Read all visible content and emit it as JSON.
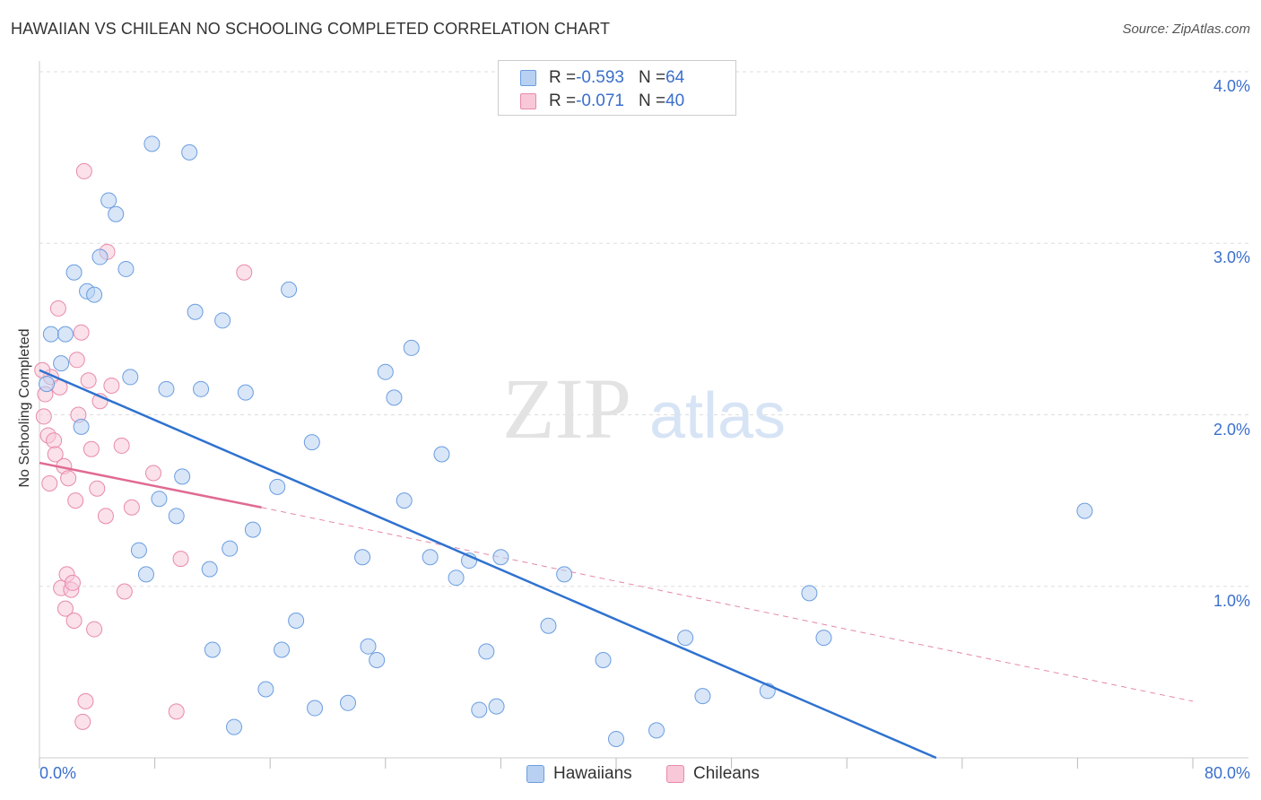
{
  "title": "HAWAIIAN VS CHILEAN NO SCHOOLING COMPLETED CORRELATION CHART",
  "source": "Source: ZipAtlas.com",
  "watermark": {
    "zip": "ZIP",
    "atlas": "atlas"
  },
  "legend_top": [
    {
      "r_label": "R = ",
      "r_value": "-0.593",
      "n_label": "N = ",
      "n_value": "64"
    },
    {
      "r_label": "R = ",
      "r_value": "-0.071",
      "n_label": "N = ",
      "n_value": "40"
    }
  ],
  "colors": {
    "hawaiians_fill": "#b8d1f2",
    "hawaiians_stroke": "#6b9de0",
    "hawaiians_line": "#2f72d0",
    "chileans_fill": "#f8c8d8",
    "chileans_stroke": "#e88aaa",
    "chileans_line": "#e06a92",
    "axis_label": "#3a6fcc",
    "grid": "#dddddd"
  },
  "chart_data": {
    "type": "scatter",
    "title": "HAWAIIAN VS CHILEAN NO SCHOOLING COMPLETED CORRELATION CHART",
    "xlabel": "",
    "ylabel": "No Schooling Completed",
    "xlim": [
      0,
      80
    ],
    "ylim": [
      0,
      4.2
    ],
    "x_tick_labels": [
      "0.0%",
      "80.0%"
    ],
    "y_ticks": [
      {
        "value": 1.0,
        "label": "1.0%"
      },
      {
        "value": 2.0,
        "label": "2.0%"
      },
      {
        "value": 3.0,
        "label": "3.0%"
      },
      {
        "value": 4.0,
        "label": "4.0%"
      }
    ],
    "grid": true,
    "legend_position": "bottom-center",
    "series": [
      {
        "name": "Hawaiians",
        "R": -0.593,
        "N": 64,
        "trend": {
          "x": [
            0.0,
            62.2
          ],
          "y": [
            2.26,
            0.0
          ]
        },
        "points": [
          [
            0.5,
            2.18
          ],
          [
            0.8,
            2.47
          ],
          [
            1.5,
            2.3
          ],
          [
            1.8,
            2.47
          ],
          [
            2.4,
            2.83
          ],
          [
            3.3,
            2.72
          ],
          [
            3.8,
            2.7
          ],
          [
            4.2,
            2.92
          ],
          [
            2.9,
            1.93
          ],
          [
            4.8,
            3.25
          ],
          [
            5.3,
            3.17
          ],
          [
            6.0,
            2.85
          ],
          [
            6.3,
            2.22
          ],
          [
            6.9,
            1.21
          ],
          [
            7.4,
            1.07
          ],
          [
            7.8,
            3.58
          ],
          [
            8.3,
            1.51
          ],
          [
            8.8,
            2.15
          ],
          [
            9.5,
            1.41
          ],
          [
            9.9,
            1.64
          ],
          [
            10.4,
            3.53
          ],
          [
            10.8,
            2.6
          ],
          [
            11.2,
            2.15
          ],
          [
            11.8,
            1.1
          ],
          [
            12.0,
            0.63
          ],
          [
            12.7,
            2.55
          ],
          [
            13.2,
            1.22
          ],
          [
            13.5,
            0.18
          ],
          [
            14.3,
            2.13
          ],
          [
            14.8,
            1.33
          ],
          [
            15.7,
            0.4
          ],
          [
            16.5,
            1.58
          ],
          [
            16.8,
            0.63
          ],
          [
            17.3,
            2.73
          ],
          [
            17.8,
            0.8
          ],
          [
            18.9,
            1.84
          ],
          [
            19.1,
            0.29
          ],
          [
            21.4,
            0.32
          ],
          [
            22.4,
            1.17
          ],
          [
            22.8,
            0.65
          ],
          [
            23.4,
            0.57
          ],
          [
            24.0,
            2.25
          ],
          [
            24.6,
            2.1
          ],
          [
            25.3,
            1.5
          ],
          [
            25.8,
            2.39
          ],
          [
            27.1,
            1.17
          ],
          [
            27.9,
            1.77
          ],
          [
            28.9,
            1.05
          ],
          [
            29.8,
            1.15
          ],
          [
            30.5,
            0.28
          ],
          [
            31.0,
            0.62
          ],
          [
            31.7,
            0.3
          ],
          [
            32.0,
            1.17
          ],
          [
            35.3,
            0.77
          ],
          [
            36.4,
            1.07
          ],
          [
            39.1,
            0.57
          ],
          [
            40.0,
            0.11
          ],
          [
            42.8,
            0.16
          ],
          [
            44.8,
            0.7
          ],
          [
            46.0,
            0.36
          ],
          [
            50.5,
            0.39
          ],
          [
            53.4,
            0.96
          ],
          [
            54.4,
            0.7
          ],
          [
            72.5,
            1.44
          ]
        ]
      },
      {
        "name": "Chileans",
        "R": -0.071,
        "N": 40,
        "trend_solid": {
          "x": [
            0.0,
            15.4
          ],
          "y": [
            1.72,
            1.46
          ]
        },
        "trend_dashed": {
          "x": [
            15.4,
            80.0
          ],
          "y": [
            1.46,
            0.33
          ]
        },
        "points": [
          [
            0.3,
            1.99
          ],
          [
            0.4,
            2.12
          ],
          [
            0.6,
            1.88
          ],
          [
            0.7,
            1.6
          ],
          [
            0.8,
            2.22
          ],
          [
            1.0,
            1.85
          ],
          [
            1.1,
            1.77
          ],
          [
            1.3,
            2.62
          ],
          [
            1.4,
            2.16
          ],
          [
            1.5,
            0.99
          ],
          [
            1.7,
            1.7
          ],
          [
            1.8,
            0.87
          ],
          [
            1.9,
            1.07
          ],
          [
            2.0,
            1.63
          ],
          [
            2.2,
            0.98
          ],
          [
            2.3,
            1.02
          ],
          [
            2.4,
            0.8
          ],
          [
            2.5,
            1.5
          ],
          [
            2.6,
            2.32
          ],
          [
            2.7,
            2.0
          ],
          [
            2.9,
            2.48
          ],
          [
            3.0,
            0.21
          ],
          [
            3.1,
            3.42
          ],
          [
            3.2,
            0.33
          ],
          [
            3.4,
            2.2
          ],
          [
            3.6,
            1.8
          ],
          [
            3.8,
            0.75
          ],
          [
            4.0,
            1.57
          ],
          [
            4.2,
            2.08
          ],
          [
            4.6,
            1.41
          ],
          [
            4.7,
            2.95
          ],
          [
            5.0,
            2.17
          ],
          [
            5.7,
            1.82
          ],
          [
            5.9,
            0.97
          ],
          [
            6.4,
            1.46
          ],
          [
            7.9,
            1.66
          ],
          [
            9.5,
            0.27
          ],
          [
            9.8,
            1.16
          ],
          [
            14.2,
            2.83
          ],
          [
            0.2,
            2.26
          ]
        ]
      }
    ]
  },
  "legend_bottom": [
    "Hawaiians",
    "Chileans"
  ]
}
